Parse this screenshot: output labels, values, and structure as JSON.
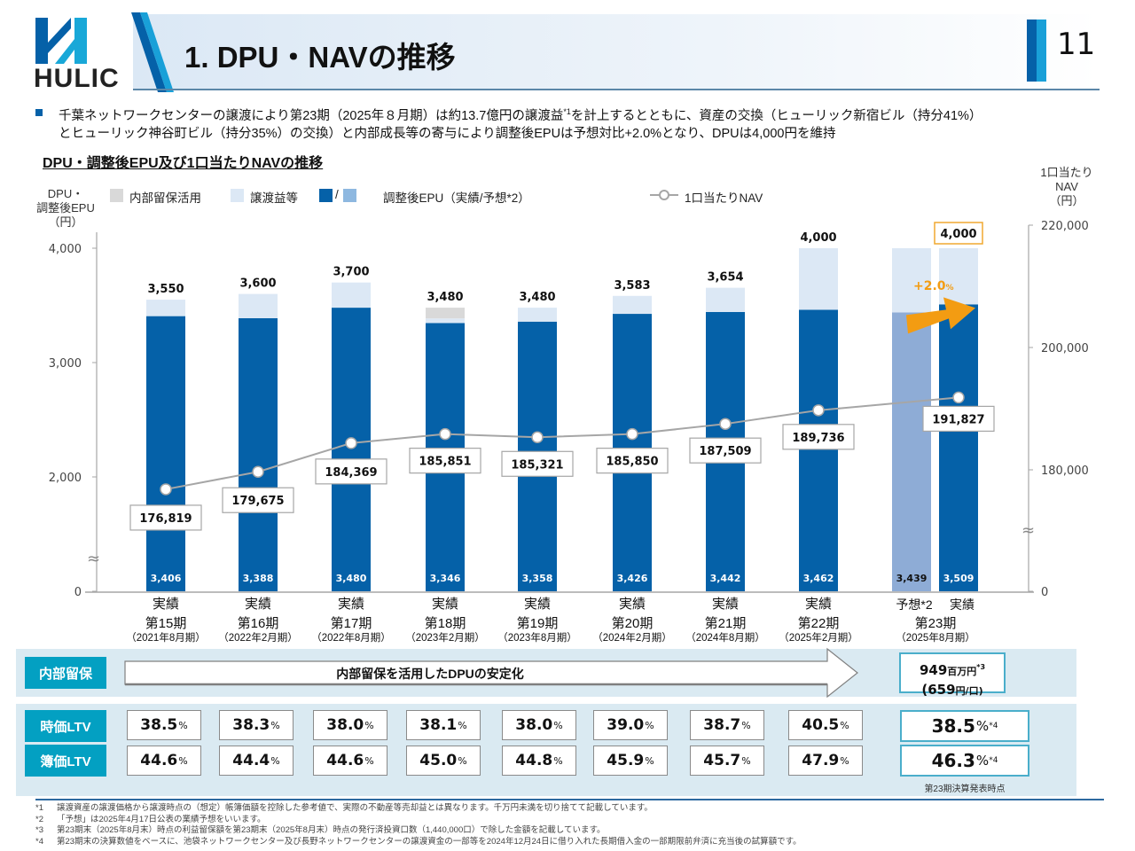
{
  "header": {
    "logo_text": "HULIC",
    "title": "1. DPU・NAVの推移",
    "page_number": "11"
  },
  "summary": {
    "line1_a": "千葉ネットワークセンターの譲渡により第23期（2025年８月期）は約13.7億円の譲渡益",
    "line1_sup": "*1",
    "line1_b": "を計上するとともに、資産の交換（ヒューリック新宿ビル（持分41%）",
    "line2": "とヒューリック神谷町ビル（持分35%）の交換）と内部成長等の寄与により調整後EPUは予想対比+2.0%となり、DPUは4,000円を維持"
  },
  "section_title": "DPU・調整後EPU及び1口当たりNAVの推移",
  "legend": {
    "left_axis_title": [
      "DPU・",
      "調整後EPU",
      "（円）"
    ],
    "right_axis_title": [
      "1口当たり",
      "NAV",
      "（円）"
    ],
    "internal_reserve": "内部留保活用",
    "transfer_gain": "譲渡益等",
    "slash": "/",
    "adjusted_epu": "調整後EPU（実績/予想*2）",
    "nav": "1口当たりNAV"
  },
  "colors": {
    "epu_actual": "#0561a8",
    "epu_forecast": "#8eacd6",
    "transfer_gain": "#dce8f5",
    "internal_reserve": "#d9d9d9",
    "nav_line": "#a6a6a6",
    "highlight": "#f39c12",
    "tag": "#03a0c2"
  },
  "chart_data": {
    "type": "bar",
    "title": "DPU・調整後EPU及び1口当たりNAVの推移",
    "left_axis": {
      "label": "DPU・調整後EPU（円）",
      "ticks": [
        "0",
        "2,000",
        "3,000",
        "4,000"
      ],
      "tick_values": [
        0,
        2000,
        3000,
        4000
      ],
      "broken": true
    },
    "right_axis": {
      "label": "1口当たりNAV（円）",
      "ticks": [
        "0",
        "180,000",
        "200,000",
        "220,000"
      ],
      "tick_values": [
        0,
        180000,
        200000,
        220000
      ],
      "broken": true
    },
    "categories": [
      {
        "kind": "実績",
        "period": "第15期",
        "date": "（2021年8月期）"
      },
      {
        "kind": "実績",
        "period": "第16期",
        "date": "（2022年2月期）"
      },
      {
        "kind": "実績",
        "period": "第17期",
        "date": "（2022年8月期）"
      },
      {
        "kind": "実績",
        "period": "第18期",
        "date": "（2023年2月期）"
      },
      {
        "kind": "実績",
        "period": "第19期",
        "date": "（2023年8月期）"
      },
      {
        "kind": "実績",
        "period": "第20期",
        "date": "（2024年2月期）"
      },
      {
        "kind": "実績",
        "period": "第21期",
        "date": "（2024年8月期）"
      },
      {
        "kind": "実績",
        "period": "第22期",
        "date": "（2025年2月期）"
      },
      {
        "kind": "予想*2",
        "period": "第23期",
        "date": "（2025年8月期）"
      },
      {
        "kind": "実績",
        "period": "第23期",
        "date": "（2025年8月期）"
      }
    ],
    "series": [
      {
        "name": "調整後EPU",
        "labels": [
          "3,406",
          "3,388",
          "3,480",
          "3,346",
          "3,358",
          "3,426",
          "3,442",
          "3,462",
          "3,439",
          "3,509"
        ],
        "values": [
          3406,
          3388,
          3480,
          3346,
          3358,
          3426,
          3442,
          3462,
          3439,
          3509
        ],
        "forecast_index": 8
      },
      {
        "name": "譲渡益等",
        "values": [
          144,
          212,
          220,
          40,
          122,
          157,
          212,
          538,
          561,
          491
        ]
      },
      {
        "name": "内部留保活用",
        "values": [
          0,
          0,
          0,
          94,
          0,
          0,
          0,
          0,
          0,
          0
        ]
      },
      {
        "name": "DPU",
        "labels": [
          "3,550",
          "3,600",
          "3,700",
          "3,480",
          "3,480",
          "3,583",
          "3,654",
          "4,000",
          "",
          "4,000"
        ],
        "values": [
          3550,
          3600,
          3700,
          3480,
          3480,
          3583,
          3654,
          4000,
          4000,
          4000
        ]
      },
      {
        "name": "1口当たりNAV",
        "type": "line",
        "labels": [
          "176,819",
          "179,675",
          "184,369",
          "185,851",
          "185,321",
          "185,850",
          "187,509",
          "189,736",
          "191,827"
        ],
        "values": [
          176819,
          179675,
          184369,
          185851,
          185321,
          185850,
          187509,
          189736,
          191827
        ]
      }
    ],
    "annotation": "+2.0%",
    "annotation_unit": "%"
  },
  "reserve": {
    "tag": "内部留保",
    "arrow_text": "内部留保を活用したDPUの安定化",
    "value": "949",
    "unit": "百万円",
    "sup": "*3",
    "per_unit_value": "(659",
    "per_unit_unit": "円/口)"
  },
  "ltv": {
    "market_tag": "時価LTV",
    "book_tag": "簿価LTV",
    "market": [
      "38.5",
      "38.3",
      "38.0",
      "38.1",
      "38.0",
      "39.0",
      "38.7",
      "40.5"
    ],
    "book": [
      "44.6",
      "44.4",
      "44.6",
      "45.0",
      "44.8",
      "45.9",
      "45.7",
      "47.9"
    ],
    "market_23": "38.5",
    "book_23": "46.3",
    "pct": "%",
    "sup": "*4",
    "note_23": "第23期決算発表時点"
  },
  "footnotes": [
    {
      "key": "*1",
      "text": "譲渡資産の譲渡価格から譲渡時点の（想定）帳簿価額を控除した参考値で、実際の不動産等売却益とは異なります。千万円未満を切り捨てて記載しています。"
    },
    {
      "key": "*2",
      "text": "「予想」は2025年4月17日公表の業績予想をいいます。"
    },
    {
      "key": "*3",
      "text": "第23期末（2025年8月末）時点の利益留保額を第23期末（2025年8月末）時点の発行済投資口数（1,440,000口）で除した金額を記載しています。"
    },
    {
      "key": "*4",
      "text": "第23期末の決算数値をベースに、池袋ネットワークセンター及び長野ネットワークセンターの譲渡資金の一部等を2024年12月24日に借り入れた長期借入金の一部期限前弁済に充当後の試算額です。"
    }
  ]
}
